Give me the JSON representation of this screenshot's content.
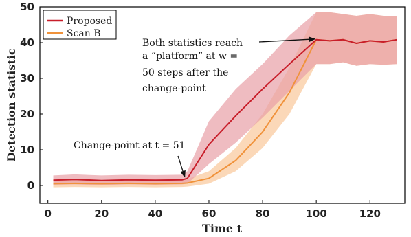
{
  "chart_data": {
    "type": "line",
    "title": "",
    "xlabel": "Time t",
    "ylabel": "Detection statistic",
    "xlim": [
      -3,
      133
    ],
    "ylim": [
      -5,
      50
    ],
    "xticks": [
      0,
      20,
      40,
      60,
      80,
      100,
      120
    ],
    "yticks": [
      0,
      10,
      20,
      30,
      40,
      50
    ],
    "grid": false,
    "legend": {
      "position": "top-left"
    },
    "series": [
      {
        "name": "Proposed",
        "color": "#c81e2a",
        "band_color": "#e8a0a6",
        "x": [
          2,
          10,
          20,
          30,
          40,
          50,
          52,
          60,
          70,
          80,
          90,
          100,
          105,
          110,
          115,
          120,
          125,
          130
        ],
        "y": [
          1.5,
          1.7,
          1.4,
          1.6,
          1.5,
          1.6,
          2.0,
          11.5,
          19.5,
          27.0,
          34.0,
          40.8,
          40.5,
          40.8,
          39.8,
          40.5,
          40.2,
          40.8
        ],
        "lower": [
          0.2,
          0.3,
          0.1,
          0.3,
          0.2,
          0.3,
          0.5,
          6.0,
          12.0,
          19.0,
          26.5,
          34.0,
          34.0,
          34.5,
          33.5,
          34.0,
          33.8,
          34.0
        ],
        "upper": [
          2.8,
          3.1,
          2.8,
          3.0,
          2.9,
          3.0,
          4.0,
          18.0,
          27.0,
          34.0,
          42.0,
          48.5,
          48.5,
          48.0,
          47.5,
          48.0,
          47.5,
          47.5
        ]
      },
      {
        "name": "Scan B",
        "color": "#f0923a",
        "band_color": "#f9c89a",
        "x": [
          2,
          10,
          20,
          30,
          40,
          50,
          52,
          60,
          70,
          80,
          90,
          100,
          105,
          110,
          115,
          120,
          125,
          130
        ],
        "y": [
          0.5,
          0.6,
          0.5,
          0.6,
          0.5,
          0.6,
          0.7,
          2.0,
          7.0,
          15.0,
          26.0,
          40.8,
          40.5,
          40.8,
          39.8,
          40.5,
          40.2,
          40.8
        ],
        "lower": [
          -0.5,
          -0.4,
          -0.5,
          -0.4,
          -0.5,
          -0.4,
          -0.3,
          0.5,
          4.0,
          10.5,
          20.0,
          34.0,
          34.0,
          34.5,
          33.5,
          34.0,
          33.8,
          34.0
        ],
        "upper": [
          1.5,
          1.6,
          1.5,
          1.6,
          1.5,
          1.6,
          1.8,
          4.0,
          10.5,
          20.0,
          33.0,
          48.5,
          48.5,
          48.0,
          47.5,
          48.0,
          47.5,
          47.5
        ]
      }
    ],
    "annotations": [
      {
        "name": "change-point",
        "lines": [
          "Change-point at t = 51"
        ],
        "arrow_to": [
          51,
          2
        ]
      },
      {
        "name": "platform",
        "lines": [
          "Both statistics reach",
          "a “platform” at w =",
          "50 steps after the",
          "change-point"
        ],
        "arrow_to": [
          100,
          41
        ]
      }
    ]
  }
}
